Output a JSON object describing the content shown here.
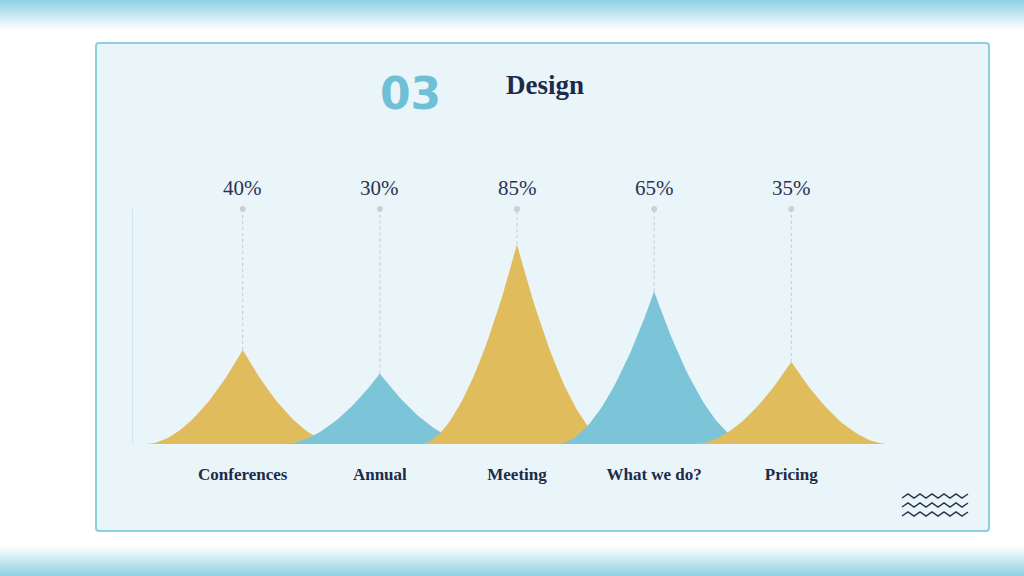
{
  "chart_data": {
    "type": "bar",
    "title": "Design",
    "annotations": [
      "03"
    ],
    "categories": [
      "Conferences",
      "Annual",
      "Meeting",
      "What we do?",
      "Pricing"
    ],
    "values": [
      40,
      30,
      85,
      65,
      35
    ],
    "value_labels": [
      "40%",
      "30%",
      "85%",
      "65%",
      "35%"
    ],
    "colors": [
      "#e1bc5c",
      "#7cc5d9",
      "#e1bc5c",
      "#7cc5d9",
      "#e1bc5c"
    ],
    "ylim": [
      0,
      100
    ],
    "grid": false,
    "data_labels": true,
    "tick_labels": "x"
  }
}
